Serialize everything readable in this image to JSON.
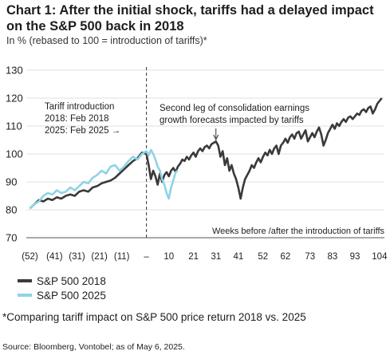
{
  "title": "Chart 1: After the initial shock, tariffs had a delayed impact on the S&P 500 back in 2018",
  "subtitle": "In % (rebased to 100 = introduction of tariffs)*",
  "footnote": "*Comparing tariff impact on S&P 500 price return 2018 vs. 2025",
  "source": "Source: Bloomberg, Vontobel; as of May 6, 2025.",
  "colors": {
    "s2018": "#3a3a3a",
    "s2025": "#8ed3e8",
    "text": "#1e1e1e",
    "axis": "#555555"
  },
  "chart_data": {
    "type": "line",
    "xlabel": "Weeks before /after the introduction of tariffs",
    "ylabel": "",
    "xlim": [
      -52,
      106
    ],
    "ylim": [
      70,
      130
    ],
    "yticks": [
      70,
      80,
      90,
      100,
      110,
      120,
      130
    ],
    "xticks": [
      {
        "x": -52,
        "label": "(52)"
      },
      {
        "x": -41,
        "label": "(41)"
      },
      {
        "x": -31,
        "label": "(31)"
      },
      {
        "x": -21,
        "label": "(21)"
      },
      {
        "x": -11,
        "label": "(11)"
      },
      {
        "x": 0,
        "label": "–"
      },
      {
        "x": 10,
        "label": "10"
      },
      {
        "x": 21,
        "label": "21"
      },
      {
        "x": 31,
        "label": "31"
      },
      {
        "x": 41,
        "label": "41"
      },
      {
        "x": 52,
        "label": "52"
      },
      {
        "x": 62,
        "label": "62"
      },
      {
        "x": 73,
        "label": "73"
      },
      {
        "x": 83,
        "label": "83"
      },
      {
        "x": 93,
        "label": "93"
      },
      {
        "x": 104,
        "label": "104"
      }
    ],
    "grid": "horizontal",
    "vline": 0,
    "series": [
      {
        "name": "S&P 500 2018",
        "points": [
          [
            -52,
            80.5
          ],
          [
            -50,
            82
          ],
          [
            -48,
            83.5
          ],
          [
            -46,
            83
          ],
          [
            -44,
            84
          ],
          [
            -42,
            83.5
          ],
          [
            -40,
            84.5
          ],
          [
            -38,
            84
          ],
          [
            -36,
            85
          ],
          [
            -34,
            85.5
          ],
          [
            -32,
            85
          ],
          [
            -30,
            86.5
          ],
          [
            -28,
            87
          ],
          [
            -26,
            86.5
          ],
          [
            -24,
            88
          ],
          [
            -22,
            88.5
          ],
          [
            -20,
            89.5
          ],
          [
            -18,
            90
          ],
          [
            -16,
            90.5
          ],
          [
            -14,
            91.5
          ],
          [
            -12,
            93
          ],
          [
            -10,
            94.5
          ],
          [
            -8,
            96
          ],
          [
            -6,
            97.5
          ],
          [
            -4,
            98.5
          ],
          [
            -2,
            100.5
          ],
          [
            0,
            100
          ],
          [
            1,
            96
          ],
          [
            2,
            91
          ],
          [
            3,
            94
          ],
          [
            4,
            92
          ],
          [
            5,
            89
          ],
          [
            6,
            93
          ],
          [
            7,
            90
          ],
          [
            8,
            92.5
          ],
          [
            9,
            93.5
          ],
          [
            10,
            92
          ],
          [
            11,
            94
          ],
          [
            12,
            95
          ],
          [
            13,
            93.5
          ],
          [
            14,
            95.5
          ],
          [
            15,
            96.5
          ],
          [
            16,
            98
          ],
          [
            17,
            97.5
          ],
          [
            18,
            99
          ],
          [
            19,
            98
          ],
          [
            20,
            99.5
          ],
          [
            21,
            100.5
          ],
          [
            22,
            99
          ],
          [
            23,
            101
          ],
          [
            24,
            102
          ],
          [
            25,
            101
          ],
          [
            26,
            102.5
          ],
          [
            27,
            103
          ],
          [
            28,
            102
          ],
          [
            29,
            103.5
          ],
          [
            30,
            104
          ],
          [
            31,
            104.5
          ],
          [
            32,
            103
          ],
          [
            33,
            99
          ],
          [
            34,
            101
          ],
          [
            35,
            96
          ],
          [
            36,
            98.5
          ],
          [
            37,
            94
          ],
          [
            38,
            96
          ],
          [
            39,
            93
          ],
          [
            40,
            91
          ],
          [
            41,
            88
          ],
          [
            42,
            84
          ],
          [
            43,
            88
          ],
          [
            44,
            91
          ],
          [
            45,
            92.5
          ],
          [
            46,
            94
          ],
          [
            47,
            96
          ],
          [
            48,
            95
          ],
          [
            49,
            97
          ],
          [
            50,
            98.5
          ],
          [
            51,
            97
          ],
          [
            52,
            99
          ],
          [
            53,
            100.5
          ],
          [
            54,
            99.5
          ],
          [
            55,
            101.5
          ],
          [
            56,
            100
          ],
          [
            57,
            102
          ],
          [
            58,
            103
          ],
          [
            59,
            100
          ],
          [
            60,
            103
          ],
          [
            61,
            104
          ],
          [
            62,
            105.5
          ],
          [
            63,
            104
          ],
          [
            64,
            106
          ],
          [
            65,
            107
          ],
          [
            66,
            105.5
          ],
          [
            67,
            107.5
          ],
          [
            68,
            108
          ],
          [
            69,
            105.5
          ],
          [
            70,
            107
          ],
          [
            71,
            108.5
          ],
          [
            72,
            104.5
          ],
          [
            73,
            106
          ],
          [
            74,
            107.5
          ],
          [
            75,
            106
          ],
          [
            76,
            108
          ],
          [
            77,
            109.5
          ],
          [
            78,
            107
          ],
          [
            79,
            103
          ],
          [
            80,
            105
          ],
          [
            81,
            107.5
          ],
          [
            82,
            109
          ],
          [
            83,
            110.5
          ],
          [
            84,
            109
          ],
          [
            85,
            111
          ],
          [
            86,
            110
          ],
          [
            87,
            111.5
          ],
          [
            88,
            112.5
          ],
          [
            89,
            111.5
          ],
          [
            90,
            113
          ],
          [
            91,
            113.5
          ],
          [
            92,
            112.5
          ],
          [
            93,
            113.5
          ],
          [
            94,
            114.5
          ],
          [
            95,
            114
          ],
          [
            96,
            115.5
          ],
          [
            97,
            116
          ],
          [
            98,
            115
          ],
          [
            99,
            116.5
          ],
          [
            100,
            117
          ],
          [
            101,
            114.5
          ],
          [
            102,
            116
          ],
          [
            103,
            118
          ],
          [
            104,
            119
          ],
          [
            105,
            120
          ]
        ]
      },
      {
        "name": "S&P 500 2025",
        "points": [
          [
            -52,
            80.5
          ],
          [
            -50,
            82
          ],
          [
            -48,
            83
          ],
          [
            -46,
            85
          ],
          [
            -44,
            86
          ],
          [
            -42,
            85.5
          ],
          [
            -40,
            87
          ],
          [
            -38,
            86
          ],
          [
            -36,
            86.5
          ],
          [
            -34,
            88
          ],
          [
            -32,
            87
          ],
          [
            -30,
            88.5
          ],
          [
            -28,
            90
          ],
          [
            -26,
            89.5
          ],
          [
            -24,
            91.5
          ],
          [
            -22,
            92.5
          ],
          [
            -20,
            94
          ],
          [
            -18,
            93
          ],
          [
            -16,
            95.5
          ],
          [
            -14,
            96
          ],
          [
            -12,
            94
          ],
          [
            -10,
            95.5
          ],
          [
            -8,
            97.5
          ],
          [
            -6,
            99
          ],
          [
            -4,
            98
          ],
          [
            -2,
            100
          ],
          [
            0,
            101
          ],
          [
            1,
            99.5
          ],
          [
            2,
            101.5
          ],
          [
            3,
            100
          ],
          [
            4,
            98
          ],
          [
            5,
            95.5
          ],
          [
            6,
            94
          ],
          [
            7,
            91
          ],
          [
            8,
            89
          ],
          [
            9,
            86
          ],
          [
            10,
            84
          ],
          [
            11,
            88
          ],
          [
            12,
            90.5
          ],
          [
            13,
            93.5
          ],
          [
            14,
            94
          ]
        ]
      }
    ],
    "annotations": [
      {
        "lines": [
          "Tariff introduction",
          "2018: Feb 2018",
          "2025: Feb 2025 →"
        ],
        "x": -5,
        "y": 101
      },
      {
        "lines": [
          "Second leg of consolidation earnings",
          "growth forecasts impacted by tariffs"
        ],
        "x": 31,
        "y": 104.5
      }
    ]
  }
}
